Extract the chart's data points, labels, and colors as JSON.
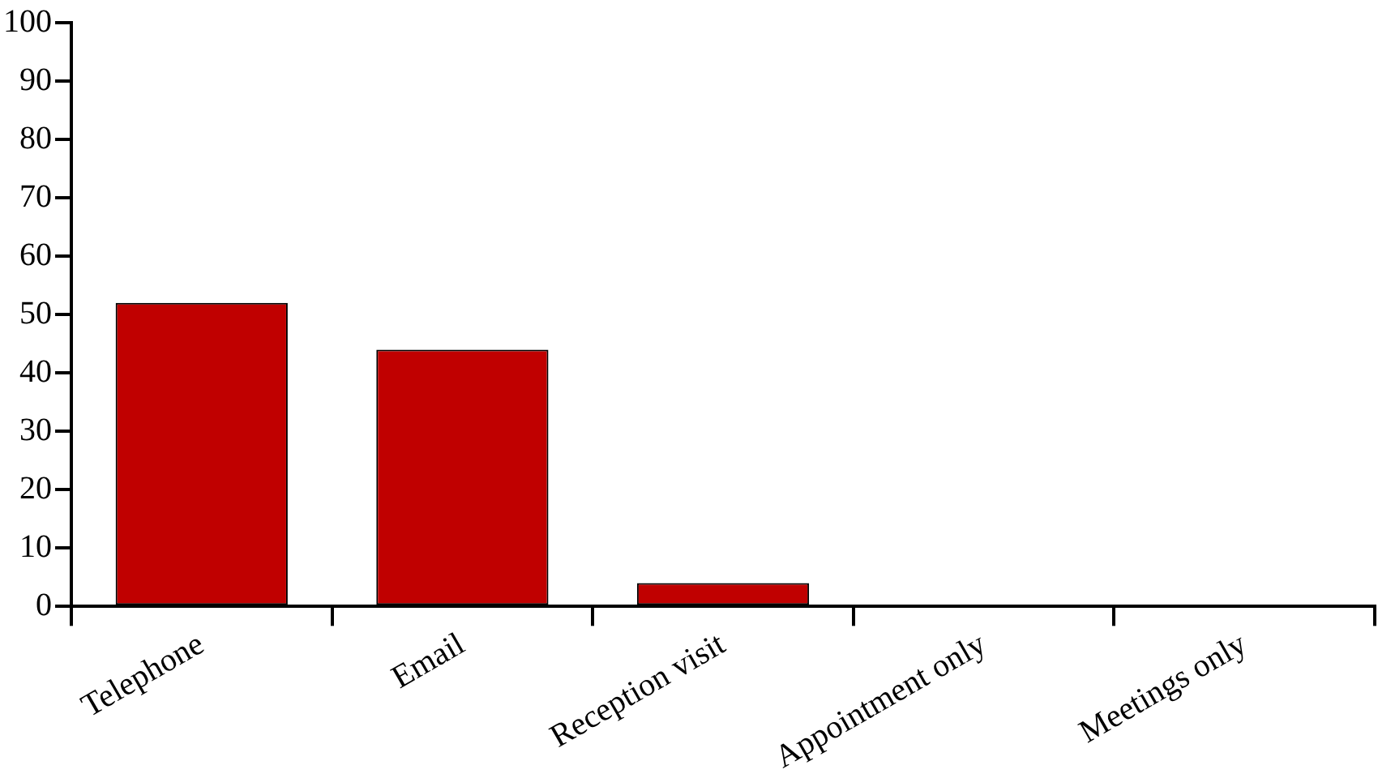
{
  "chart_data": {
    "type": "bar",
    "categories": [
      "Telephone",
      "Email",
      "Reception visit",
      "Appointment only",
      "Meetings only"
    ],
    "values": [
      52,
      44,
      4,
      0,
      0
    ],
    "color": "#c00000",
    "ylim": [
      0,
      100
    ],
    "yticks": [
      0,
      10,
      20,
      30,
      40,
      50,
      60,
      70,
      80,
      90,
      100
    ]
  }
}
